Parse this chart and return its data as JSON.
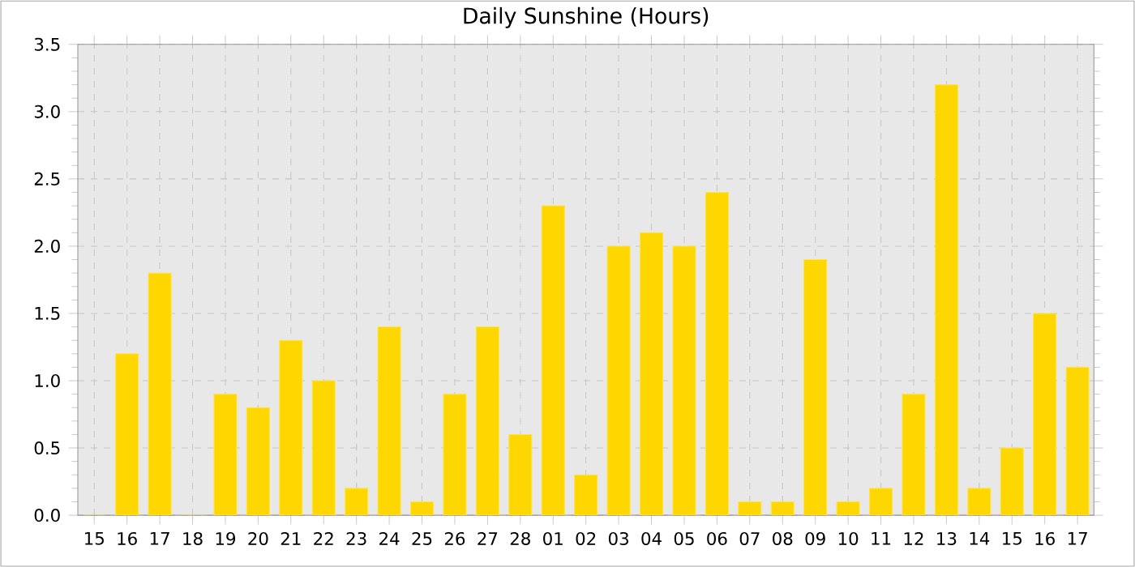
{
  "chart_data": {
    "type": "bar",
    "title": "Daily Sunshine (Hours)",
    "categories": [
      "15",
      "16",
      "17",
      "18",
      "19",
      "20",
      "21",
      "22",
      "23",
      "24",
      "25",
      "26",
      "27",
      "28",
      "01",
      "02",
      "03",
      "04",
      "05",
      "06",
      "07",
      "08",
      "09",
      "10",
      "11",
      "12",
      "13",
      "14",
      "15",
      "16",
      "17"
    ],
    "values": [
      0,
      1.2,
      1.8,
      0,
      0.9,
      0.8,
      1.3,
      1.0,
      0.2,
      1.4,
      0.1,
      0.9,
      1.4,
      0.6,
      2.3,
      0.3,
      2.0,
      2.1,
      2.0,
      2.4,
      0.1,
      0.1,
      1.9,
      0.1,
      0.2,
      0.9,
      3.2,
      0.2,
      0.5,
      1.5,
      1.1
    ],
    "color": "#ffd700",
    "ylim": [
      0,
      3.5
    ],
    "yticks": [
      {
        "value": 0,
        "label": "0.0"
      },
      0.5,
      {
        "value": 1,
        "label": "1.0"
      },
      1.5,
      {
        "value": 2,
        "label": "2.0"
      },
      2.5,
      {
        "value": 3,
        "label": "3.0"
      },
      3.5
    ],
    "grid": true
  }
}
